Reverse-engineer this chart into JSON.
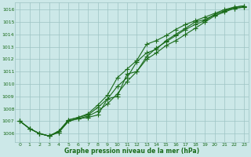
{
  "x": [
    0,
    1,
    2,
    3,
    4,
    5,
    6,
    7,
    8,
    9,
    10,
    11,
    12,
    13,
    14,
    15,
    16,
    17,
    18,
    19,
    20,
    21,
    22,
    23
  ],
  "line1": [
    1007.0,
    1006.4,
    1006.0,
    1005.8,
    1006.1,
    1007.0,
    1007.2,
    1007.3,
    1007.5,
    1008.8,
    1009.0,
    1010.8,
    1011.0,
    1012.0,
    1012.5,
    1013.1,
    1013.5,
    1014.0,
    1014.5,
    1015.0,
    1015.5,
    1015.8,
    1016.1,
    1016.2
  ],
  "line2": [
    1007.0,
    1006.4,
    1006.0,
    1005.8,
    1006.2,
    1007.1,
    1007.3,
    1007.5,
    1008.1,
    1008.8,
    1009.8,
    1010.5,
    1011.8,
    1012.5,
    1012.8,
    1013.5,
    1014.0,
    1014.5,
    1015.0,
    1015.2,
    1015.6,
    1015.9,
    1016.1,
    1016.2
  ],
  "line3": [
    1007.0,
    1006.4,
    1006.0,
    1005.8,
    1006.2,
    1007.1,
    1007.3,
    1007.6,
    1008.3,
    1009.1,
    1010.5,
    1011.2,
    1011.9,
    1013.2,
    1013.5,
    1013.9,
    1014.4,
    1014.8,
    1015.1,
    1015.4,
    1015.7,
    1016.0,
    1016.2,
    1016.3
  ],
  "line4": [
    1007.0,
    1006.4,
    1006.0,
    1005.8,
    1006.1,
    1007.0,
    1007.2,
    1007.4,
    1007.8,
    1008.4,
    1009.2,
    1010.2,
    1011.0,
    1012.2,
    1012.9,
    1013.4,
    1013.9,
    1014.4,
    1014.8,
    1015.1,
    1015.6,
    1015.9,
    1016.2,
    1016.3
  ],
  "ylim": [
    1005.3,
    1016.6
  ],
  "yticks": [
    1006,
    1007,
    1008,
    1009,
    1010,
    1011,
    1012,
    1013,
    1014,
    1015,
    1016
  ],
  "xlim": [
    -0.5,
    23.5
  ],
  "xlabel": "Graphe pression niveau de la mer (hPa)",
  "line_color": "#1a6b1a",
  "bg_color": "#cce8e8",
  "grid_color": "#9ec4c4",
  "tick_label_color": "#1a6b1a",
  "xlabel_color": "#1a6b1a",
  "marker": "+",
  "linewidth": 0.8,
  "markersize": 4,
  "figwidth": 3.2,
  "figheight": 2.0,
  "dpi": 100
}
